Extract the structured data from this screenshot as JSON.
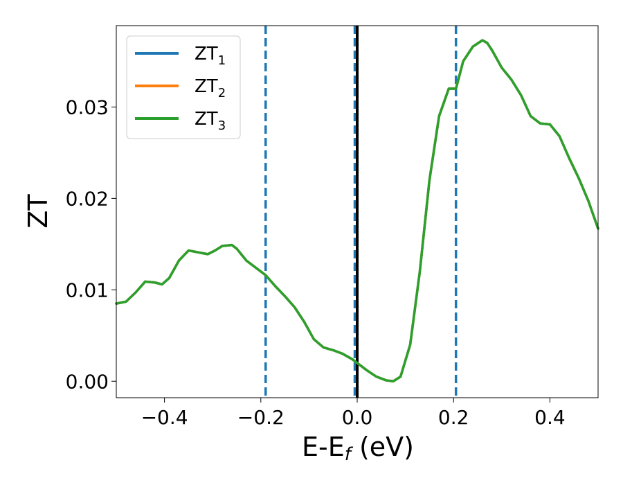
{
  "chart_data": {
    "type": "line",
    "xlabel": "E-E",
    "xlabel_sub": "f",
    "xlabel_unit": " (eV)",
    "ylabel": "ZT",
    "xlim": [
      -0.5,
      0.5
    ],
    "ylim": [
      -0.0018,
      0.0389
    ],
    "x_ticks": [
      -0.4,
      -0.2,
      0.0,
      0.2,
      0.4
    ],
    "x_tick_labels": [
      "−0.4",
      "−0.2",
      "0.0",
      "0.2",
      "0.4"
    ],
    "y_ticks": [
      0.0,
      0.01,
      0.02,
      0.03
    ],
    "y_tick_labels": [
      "0.00",
      "0.01",
      "0.02",
      "0.03"
    ],
    "legend_position": "top-left",
    "grid": false,
    "vertical_lines": [
      {
        "x": -0.19,
        "style": "dashed",
        "color": "#1f77b4"
      },
      {
        "x": -0.005,
        "style": "dashed",
        "color": "#1f77b4"
      },
      {
        "x": 0.0,
        "style": "solid",
        "color": "#000000"
      },
      {
        "x": 0.205,
        "style": "dashed",
        "color": "#1f77b4"
      }
    ],
    "series": [
      {
        "name": "ZT",
        "sub": "1",
        "color": "#1f77b4"
      },
      {
        "name": "ZT",
        "sub": "2",
        "color": "#ff7f0e"
      },
      {
        "name": "ZT",
        "sub": "3",
        "color": "#2ca02c"
      }
    ],
    "x": [
      -0.5,
      -0.48,
      -0.46,
      -0.44,
      -0.42,
      -0.405,
      -0.39,
      -0.37,
      -0.35,
      -0.33,
      -0.31,
      -0.295,
      -0.28,
      -0.26,
      -0.25,
      -0.23,
      -0.21,
      -0.19,
      -0.17,
      -0.15,
      -0.13,
      -0.11,
      -0.09,
      -0.07,
      -0.05,
      -0.03,
      -0.01,
      0.0,
      0.02,
      0.04,
      0.06,
      0.075,
      0.09,
      0.11,
      0.13,
      0.15,
      0.17,
      0.19,
      0.205,
      0.22,
      0.24,
      0.26,
      0.27,
      0.28,
      0.3,
      0.32,
      0.34,
      0.36,
      0.38,
      0.4,
      0.42,
      0.44,
      0.46,
      0.48,
      0.5
    ],
    "y": [
      0.0085,
      0.0087,
      0.0097,
      0.0109,
      0.0108,
      0.0106,
      0.0113,
      0.0132,
      0.0143,
      0.0141,
      0.0139,
      0.0143,
      0.0148,
      0.0149,
      0.0145,
      0.0132,
      0.0124,
      0.0116,
      0.0104,
      0.0093,
      0.0081,
      0.0065,
      0.0046,
      0.0037,
      0.0034,
      0.003,
      0.0024,
      0.002,
      0.0012,
      0.0005,
      0.0001,
      0.0,
      0.0005,
      0.004,
      0.012,
      0.022,
      0.029,
      0.032,
      0.032,
      0.035,
      0.0366,
      0.0373,
      0.037,
      0.0362,
      0.0343,
      0.033,
      0.0313,
      0.029,
      0.0282,
      0.0281,
      0.0268,
      0.0244,
      0.0222,
      0.0197,
      0.0167
    ]
  }
}
